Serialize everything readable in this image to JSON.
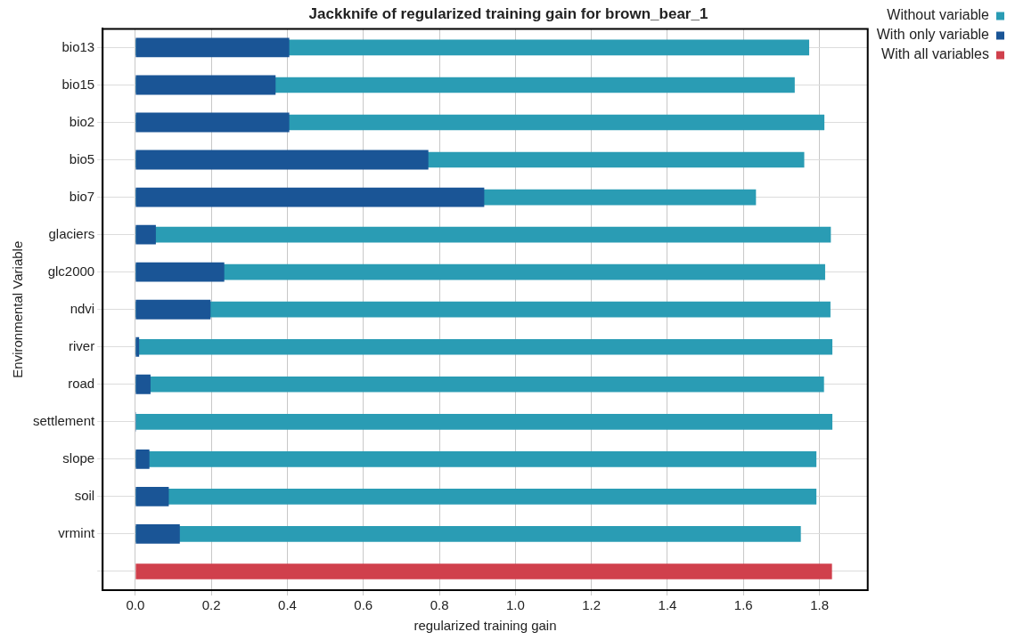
{
  "chart_data": {
    "type": "bar",
    "orientation": "horizontal",
    "title": "Jackknife of regularized training gain for brown_bear_1",
    "xlabel": "regularized training gain",
    "ylabel": "Environmental Variable",
    "categories": [
      "bio13",
      "bio15",
      "bio2",
      "bio5",
      "bio7",
      "glaciers",
      "glc2000",
      "ndvi",
      "river",
      "road",
      "settlement",
      "slope",
      "soil",
      "vrmint",
      null
    ],
    "series": [
      {
        "name": "Without variable",
        "color": "#2a9cb4",
        "values": [
          1.773,
          1.735,
          1.813,
          1.76,
          1.633,
          1.83,
          1.815,
          1.829,
          1.834,
          1.812,
          1.834,
          1.792,
          1.792,
          1.751,
          null
        ]
      },
      {
        "name": "With only variable",
        "color": "#1a5596",
        "values": [
          0.405,
          0.369,
          0.405,
          0.771,
          0.918,
          0.054,
          0.234,
          0.198,
          0.01,
          0.04,
          0.002,
          0.037,
          0.088,
          0.117,
          null
        ]
      },
      {
        "name": "With all variables",
        "color": "#d0404c",
        "values": [
          null,
          null,
          null,
          null,
          null,
          null,
          null,
          null,
          null,
          null,
          null,
          null,
          null,
          null,
          1.833
        ]
      }
    ],
    "xlim": [
      -0.086,
      1.927
    ],
    "xticks": [
      {
        "value": 0,
        "label": "0.0"
      },
      0.2,
      0.4,
      0.6,
      0.8,
      {
        "value": 1,
        "label": "1.0"
      },
      1.2,
      1.4,
      1.6,
      1.8
    ],
    "grid": true,
    "legend": "top right"
  }
}
